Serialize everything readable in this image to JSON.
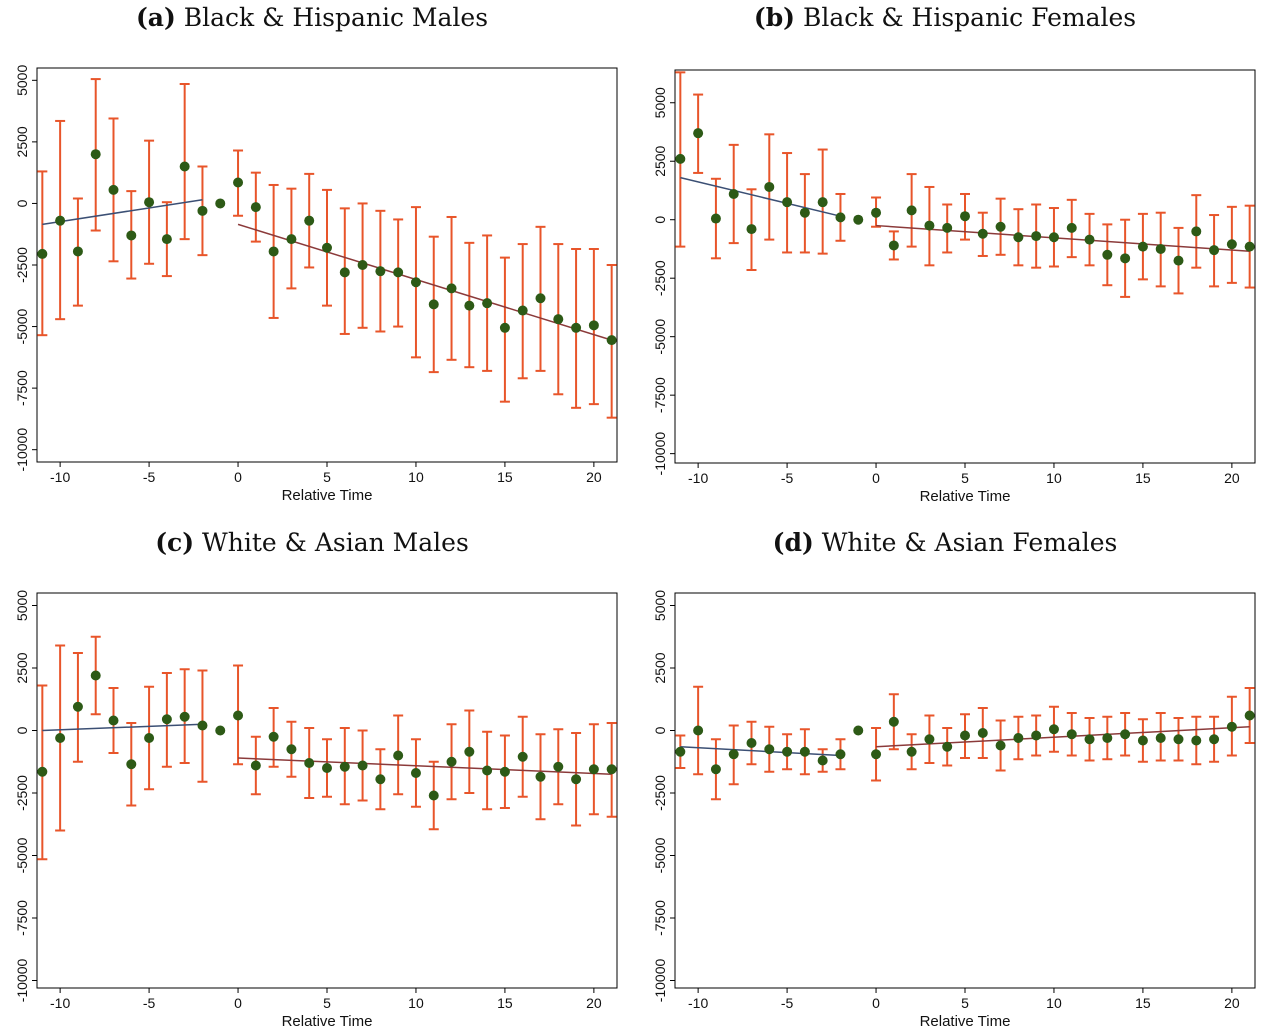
{
  "colors": {
    "point": "#2d5a16",
    "errorbar": "#e8552a",
    "pre_fit": "#3b4f74",
    "post_fit": "#8b3a3a"
  },
  "chart_data": [
    {
      "type": "scatter",
      "label": "(a)",
      "title": "Black & Hispanic Males",
      "xlabel": "Relative Time",
      "ylabel": "",
      "xlim": [
        -11.3,
        21.3
      ],
      "ylim": [
        -10500,
        5500
      ],
      "xticks": [
        -10,
        -5,
        0,
        5,
        10,
        15,
        20
      ],
      "yticks": [
        5000,
        2500,
        0,
        -2500,
        -5000,
        -7500,
        -10000
      ],
      "points": [
        {
          "x": -11,
          "y": -2050,
          "lo": -5350,
          "hi": 1300
        },
        {
          "x": -10,
          "y": -700,
          "lo": -4700,
          "hi": 3350
        },
        {
          "x": -9,
          "y": -1950,
          "lo": -4150,
          "hi": 200
        },
        {
          "x": -8,
          "y": 2000,
          "lo": -1100,
          "hi": 5050
        },
        {
          "x": -7,
          "y": 550,
          "lo": -2350,
          "hi": 3450
        },
        {
          "x": -6,
          "y": -1300,
          "lo": -3050,
          "hi": 500
        },
        {
          "x": -5,
          "y": 50,
          "lo": -2450,
          "hi": 2550
        },
        {
          "x": -4,
          "y": -1450,
          "lo": -2950,
          "hi": 50
        },
        {
          "x": -3,
          "y": 1500,
          "lo": -1450,
          "hi": 4850
        },
        {
          "x": -2,
          "y": -300,
          "lo": -2100,
          "hi": 1500
        },
        {
          "x": -1,
          "y": 0,
          "lo": 0,
          "hi": 0
        },
        {
          "x": 0,
          "y": 850,
          "lo": -500,
          "hi": 2150
        },
        {
          "x": 1,
          "y": -150,
          "lo": -1550,
          "hi": 1250
        },
        {
          "x": 2,
          "y": -1950,
          "lo": -4650,
          "hi": 750
        },
        {
          "x": 3,
          "y": -1450,
          "lo": -3450,
          "hi": 600
        },
        {
          "x": 4,
          "y": -700,
          "lo": -2600,
          "hi": 1200
        },
        {
          "x": 5,
          "y": -1800,
          "lo": -4150,
          "hi": 550
        },
        {
          "x": 6,
          "y": -2800,
          "lo": -5300,
          "hi": -200
        },
        {
          "x": 7,
          "y": -2500,
          "lo": -5050,
          "hi": 0
        },
        {
          "x": 8,
          "y": -2750,
          "lo": -5200,
          "hi": -300
        },
        {
          "x": 9,
          "y": -2800,
          "lo": -5000,
          "hi": -650
        },
        {
          "x": 10,
          "y": -3200,
          "lo": -6250,
          "hi": -150
        },
        {
          "x": 11,
          "y": -4100,
          "lo": -6850,
          "hi": -1350
        },
        {
          "x": 12,
          "y": -3450,
          "lo": -6350,
          "hi": -550
        },
        {
          "x": 13,
          "y": -4150,
          "lo": -6650,
          "hi": -1600
        },
        {
          "x": 14,
          "y": -4050,
          "lo": -6800,
          "hi": -1300
        },
        {
          "x": 15,
          "y": -5050,
          "lo": -8050,
          "hi": -2200
        },
        {
          "x": 16,
          "y": -4350,
          "lo": -7100,
          "hi": -1650
        },
        {
          "x": 17,
          "y": -3850,
          "lo": -6800,
          "hi": -950
        },
        {
          "x": 18,
          "y": -4700,
          "lo": -7750,
          "hi": -1650
        },
        {
          "x": 19,
          "y": -5050,
          "lo": -8300,
          "hi": -1850
        },
        {
          "x": 20,
          "y": -4950,
          "lo": -8150,
          "hi": -1850
        },
        {
          "x": 21,
          "y": -5550,
          "lo": -8700,
          "hi": -2500
        }
      ],
      "pre_fit": {
        "x0": -11,
        "y0": -850,
        "x1": -2,
        "y1": 150
      },
      "post_fit": {
        "x0": 0,
        "y0": -850,
        "x1": 21,
        "y1": -5550
      }
    },
    {
      "type": "scatter",
      "label": "(b)",
      "title": "Black & Hispanic Females",
      "xlabel": "Relative Time",
      "ylabel": "",
      "xlim": [
        -11.3,
        21.3
      ],
      "ylim": [
        -10400,
        6400
      ],
      "xticks": [
        -10,
        -5,
        0,
        5,
        10,
        15,
        20
      ],
      "yticks": [
        5000,
        2500,
        0,
        -2500,
        -5000,
        -7500,
        -10000
      ],
      "points": [
        {
          "x": -11,
          "y": 2600,
          "lo": -1150,
          "hi": 6300
        },
        {
          "x": -10,
          "y": 3700,
          "lo": 2000,
          "hi": 5350
        },
        {
          "x": -9,
          "y": 50,
          "lo": -1650,
          "hi": 1750
        },
        {
          "x": -8,
          "y": 1100,
          "lo": -1000,
          "hi": 3200
        },
        {
          "x": -7,
          "y": -400,
          "lo": -2150,
          "hi": 1300
        },
        {
          "x": -6,
          "y": 1400,
          "lo": -850,
          "hi": 3650
        },
        {
          "x": -5,
          "y": 750,
          "lo": -1400,
          "hi": 2850
        },
        {
          "x": -4,
          "y": 300,
          "lo": -1400,
          "hi": 1950
        },
        {
          "x": -3,
          "y": 750,
          "lo": -1450,
          "hi": 3000
        },
        {
          "x": -2,
          "y": 100,
          "lo": -900,
          "hi": 1100
        },
        {
          "x": -1,
          "y": 0,
          "lo": 0,
          "hi": 0
        },
        {
          "x": 0,
          "y": 300,
          "lo": -300,
          "hi": 950
        },
        {
          "x": 1,
          "y": -1100,
          "lo": -1700,
          "hi": -500
        },
        {
          "x": 2,
          "y": 400,
          "lo": -1150,
          "hi": 1950
        },
        {
          "x": 3,
          "y": -250,
          "lo": -1950,
          "hi": 1400
        },
        {
          "x": 4,
          "y": -350,
          "lo": -1400,
          "hi": 650
        },
        {
          "x": 5,
          "y": 150,
          "lo": -850,
          "hi": 1100
        },
        {
          "x": 6,
          "y": -600,
          "lo": -1550,
          "hi": 300
        },
        {
          "x": 7,
          "y": -300,
          "lo": -1500,
          "hi": 900
        },
        {
          "x": 8,
          "y": -750,
          "lo": -1950,
          "hi": 450
        },
        {
          "x": 9,
          "y": -700,
          "lo": -2050,
          "hi": 650
        },
        {
          "x": 10,
          "y": -750,
          "lo": -2000,
          "hi": 500
        },
        {
          "x": 11,
          "y": -350,
          "lo": -1600,
          "hi": 850
        },
        {
          "x": 12,
          "y": -850,
          "lo": -1950,
          "hi": 250
        },
        {
          "x": 13,
          "y": -1500,
          "lo": -2800,
          "hi": -200
        },
        {
          "x": 14,
          "y": -1650,
          "lo": -3300,
          "hi": 0
        },
        {
          "x": 15,
          "y": -1150,
          "lo": -2550,
          "hi": 250
        },
        {
          "x": 16,
          "y": -1250,
          "lo": -2850,
          "hi": 300
        },
        {
          "x": 17,
          "y": -1750,
          "lo": -3150,
          "hi": -350
        },
        {
          "x": 18,
          "y": -500,
          "lo": -2050,
          "hi": 1050
        },
        {
          "x": 19,
          "y": -1300,
          "lo": -2850,
          "hi": 200
        },
        {
          "x": 20,
          "y": -1050,
          "lo": -2700,
          "hi": 550
        },
        {
          "x": 21,
          "y": -1150,
          "lo": -2900,
          "hi": 600
        }
      ],
      "pre_fit": {
        "x0": -11,
        "y0": 1800,
        "x1": -2,
        "y1": 150
      },
      "post_fit": {
        "x0": 0,
        "y0": -250,
        "x1": 21,
        "y1": -1350
      }
    },
    {
      "type": "scatter",
      "label": "(c)",
      "title": "White & Asian Males",
      "xlabel": "Relative Time",
      "ylabel": "",
      "xlim": [
        -11.3,
        21.3
      ],
      "ylim": [
        -10300,
        5500
      ],
      "xticks": [
        -10,
        -5,
        0,
        5,
        10,
        15,
        20
      ],
      "yticks": [
        5000,
        2500,
        0,
        -2500,
        -5000,
        -7500,
        -10000
      ],
      "points": [
        {
          "x": -11,
          "y": -1650,
          "lo": -5150,
          "hi": 1800
        },
        {
          "x": -10,
          "y": -300,
          "lo": -4000,
          "hi": 3400
        },
        {
          "x": -9,
          "y": 950,
          "lo": -1250,
          "hi": 3100
        },
        {
          "x": -8,
          "y": 2200,
          "lo": 650,
          "hi": 3750
        },
        {
          "x": -7,
          "y": 400,
          "lo": -900,
          "hi": 1700
        },
        {
          "x": -6,
          "y": -1350,
          "lo": -3000,
          "hi": 300
        },
        {
          "x": -5,
          "y": -300,
          "lo": -2350,
          "hi": 1750
        },
        {
          "x": -4,
          "y": 450,
          "lo": -1450,
          "hi": 2300
        },
        {
          "x": -3,
          "y": 550,
          "lo": -1300,
          "hi": 2450
        },
        {
          "x": -2,
          "y": 200,
          "lo": -2050,
          "hi": 2400
        },
        {
          "x": -1,
          "y": 0,
          "lo": 0,
          "hi": 0
        },
        {
          "x": 0,
          "y": 600,
          "lo": -1350,
          "hi": 2600
        },
        {
          "x": 1,
          "y": -1400,
          "lo": -2550,
          "hi": -250
        },
        {
          "x": 2,
          "y": -250,
          "lo": -1450,
          "hi": 900
        },
        {
          "x": 3,
          "y": -750,
          "lo": -1850,
          "hi": 350
        },
        {
          "x": 4,
          "y": -1300,
          "lo": -2700,
          "hi": 100
        },
        {
          "x": 5,
          "y": -1500,
          "lo": -2650,
          "hi": -350
        },
        {
          "x": 6,
          "y": -1450,
          "lo": -2950,
          "hi": 100
        },
        {
          "x": 7,
          "y": -1400,
          "lo": -2800,
          "hi": 0
        },
        {
          "x": 8,
          "y": -1950,
          "lo": -3150,
          "hi": -750
        },
        {
          "x": 9,
          "y": -1000,
          "lo": -2550,
          "hi": 600
        },
        {
          "x": 10,
          "y": -1700,
          "lo": -3050,
          "hi": -350
        },
        {
          "x": 11,
          "y": -2600,
          "lo": -3950,
          "hi": -1250
        },
        {
          "x": 12,
          "y": -1250,
          "lo": -2750,
          "hi": 250
        },
        {
          "x": 13,
          "y": -850,
          "lo": -2500,
          "hi": 800
        },
        {
          "x": 14,
          "y": -1600,
          "lo": -3150,
          "hi": -50
        },
        {
          "x": 15,
          "y": -1650,
          "lo": -3100,
          "hi": -200
        },
        {
          "x": 16,
          "y": -1050,
          "lo": -2650,
          "hi": 550
        },
        {
          "x": 17,
          "y": -1850,
          "lo": -3550,
          "hi": -150
        },
        {
          "x": 18,
          "y": -1450,
          "lo": -2950,
          "hi": 50
        },
        {
          "x": 19,
          "y": -1950,
          "lo": -3800,
          "hi": -100
        },
        {
          "x": 20,
          "y": -1550,
          "lo": -3350,
          "hi": 250
        },
        {
          "x": 21,
          "y": -1550,
          "lo": -3450,
          "hi": 300
        }
      ],
      "pre_fit": {
        "x0": -11,
        "y0": 0,
        "x1": -2,
        "y1": 250
      },
      "post_fit": {
        "x0": 0,
        "y0": -1100,
        "x1": 21,
        "y1": -1750
      }
    },
    {
      "type": "scatter",
      "label": "(d)",
      "title": "White & Asian Females",
      "xlabel": "Relative Time",
      "ylabel": "",
      "xlim": [
        -11.3,
        21.3
      ],
      "ylim": [
        -10300,
        5500
      ],
      "xticks": [
        -10,
        -5,
        0,
        5,
        10,
        15,
        20
      ],
      "yticks": [
        5000,
        2500,
        0,
        -2500,
        -5000,
        -7500,
        -10000
      ],
      "points": [
        {
          "x": -11,
          "y": -850,
          "lo": -1500,
          "hi": -200
        },
        {
          "x": -10,
          "y": 0,
          "lo": -1750,
          "hi": 1750
        },
        {
          "x": -9,
          "y": -1550,
          "lo": -2750,
          "hi": -350
        },
        {
          "x": -8,
          "y": -950,
          "lo": -2150,
          "hi": 200
        },
        {
          "x": -7,
          "y": -500,
          "lo": -1350,
          "hi": 350
        },
        {
          "x": -6,
          "y": -750,
          "lo": -1650,
          "hi": 150
        },
        {
          "x": -5,
          "y": -850,
          "lo": -1550,
          "hi": -150
        },
        {
          "x": -4,
          "y": -850,
          "lo": -1750,
          "hi": 50
        },
        {
          "x": -3,
          "y": -1200,
          "lo": -1650,
          "hi": -750
        },
        {
          "x": -2,
          "y": -950,
          "lo": -1550,
          "hi": -350
        },
        {
          "x": -1,
          "y": 0,
          "lo": 0,
          "hi": 0
        },
        {
          "x": 0,
          "y": -950,
          "lo": -2000,
          "hi": 100
        },
        {
          "x": 1,
          "y": 350,
          "lo": -750,
          "hi": 1450
        },
        {
          "x": 2,
          "y": -850,
          "lo": -1550,
          "hi": -150
        },
        {
          "x": 3,
          "y": -350,
          "lo": -1300,
          "hi": 600
        },
        {
          "x": 4,
          "y": -650,
          "lo": -1400,
          "hi": 100
        },
        {
          "x": 5,
          "y": -200,
          "lo": -1100,
          "hi": 650
        },
        {
          "x": 6,
          "y": -100,
          "lo": -1100,
          "hi": 900
        },
        {
          "x": 7,
          "y": -600,
          "lo": -1600,
          "hi": 400
        },
        {
          "x": 8,
          "y": -300,
          "lo": -1150,
          "hi": 550
        },
        {
          "x": 9,
          "y": -200,
          "lo": -1000,
          "hi": 600
        },
        {
          "x": 10,
          "y": 50,
          "lo": -850,
          "hi": 950
        },
        {
          "x": 11,
          "y": -150,
          "lo": -1000,
          "hi": 700
        },
        {
          "x": 12,
          "y": -350,
          "lo": -1200,
          "hi": 500
        },
        {
          "x": 13,
          "y": -300,
          "lo": -1150,
          "hi": 550
        },
        {
          "x": 14,
          "y": -150,
          "lo": -1000,
          "hi": 700
        },
        {
          "x": 15,
          "y": -400,
          "lo": -1250,
          "hi": 450
        },
        {
          "x": 16,
          "y": -300,
          "lo": -1200,
          "hi": 700
        },
        {
          "x": 17,
          "y": -350,
          "lo": -1200,
          "hi": 500
        },
        {
          "x": 18,
          "y": -400,
          "lo": -1350,
          "hi": 550
        },
        {
          "x": 19,
          "y": -350,
          "lo": -1250,
          "hi": 550
        },
        {
          "x": 20,
          "y": 150,
          "lo": -1000,
          "hi": 1350
        },
        {
          "x": 21,
          "y": 600,
          "lo": -500,
          "hi": 1700
        }
      ],
      "pre_fit": {
        "x0": -11,
        "y0": -650,
        "x1": -2,
        "y1": -1000
      },
      "post_fit": {
        "x0": 0,
        "y0": -650,
        "x1": 21,
        "y1": 150
      }
    }
  ]
}
